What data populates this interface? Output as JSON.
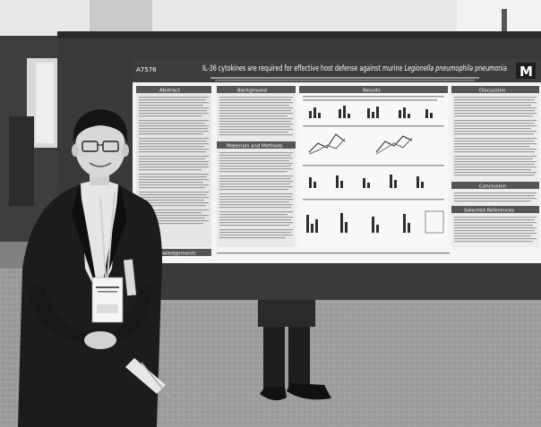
{
  "photo": {
    "description_hidden": "",
    "poster": {
      "number": "A7576",
      "title": "IL-36 cytokines are required for effective host defense against murine ",
      "title_italic": "Legionella pneumophila",
      "title_end": " pneumonia",
      "logo_letter": "M",
      "sections": {
        "abstract": "Abstract",
        "background": "Background",
        "results": "Results",
        "discussion": "Discussion",
        "methods": "Materials and Methods",
        "conclusion": "Conclusion",
        "references": "Selected References",
        "acknowledgements": "Acknowledgements"
      }
    }
  }
}
